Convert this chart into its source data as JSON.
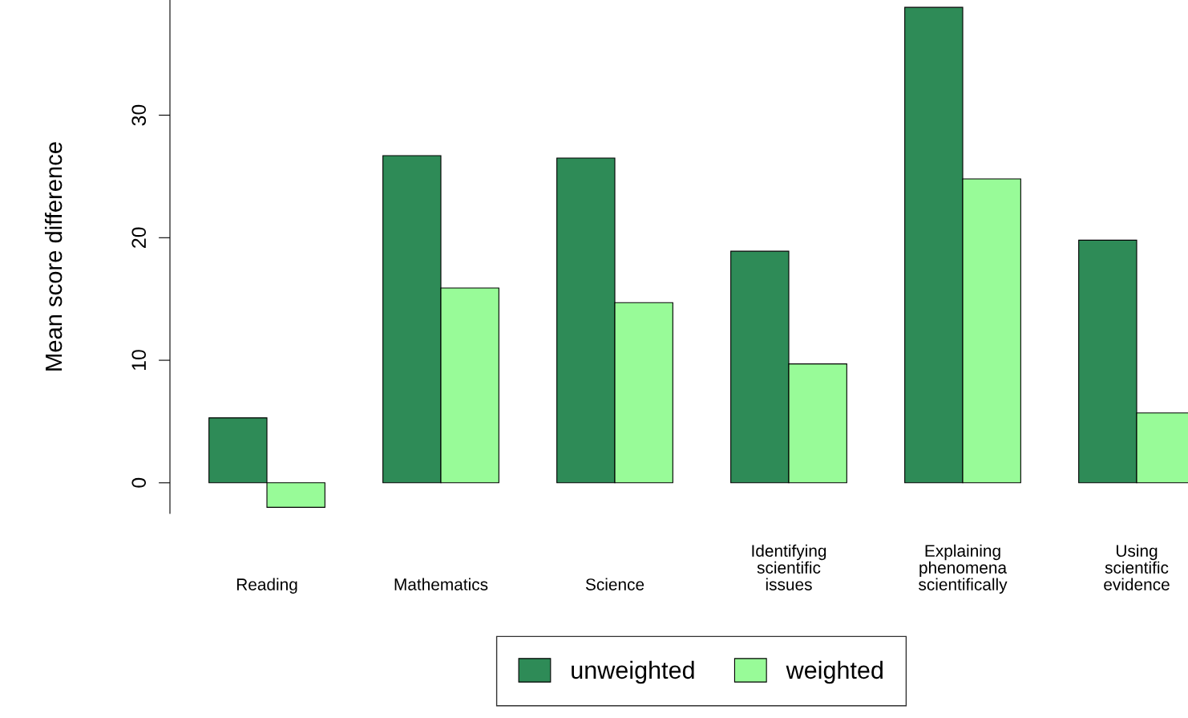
{
  "chart_data": {
    "type": "bar",
    "ylabel": "Mean score difference",
    "categories": [
      "Reading",
      "Mathematics",
      "Science",
      "Identifying\nscientific\nissues",
      "Explaining\nphenomena\nscientifically",
      "Using\nscientific\nevidence"
    ],
    "series": [
      {
        "name": "unweighted",
        "color": "#2e8b57",
        "values": [
          5.3,
          26.7,
          26.5,
          18.9,
          38.8,
          19.8
        ]
      },
      {
        "name": "weighted",
        "color": "#98fb98",
        "values": [
          -2.0,
          15.9,
          14.7,
          9.7,
          24.8,
          5.7
        ]
      }
    ],
    "ylim": [
      -2.5,
      39.4
    ],
    "yticks": [
      0,
      10,
      20,
      30
    ],
    "grid": false,
    "legend": "bottom"
  }
}
